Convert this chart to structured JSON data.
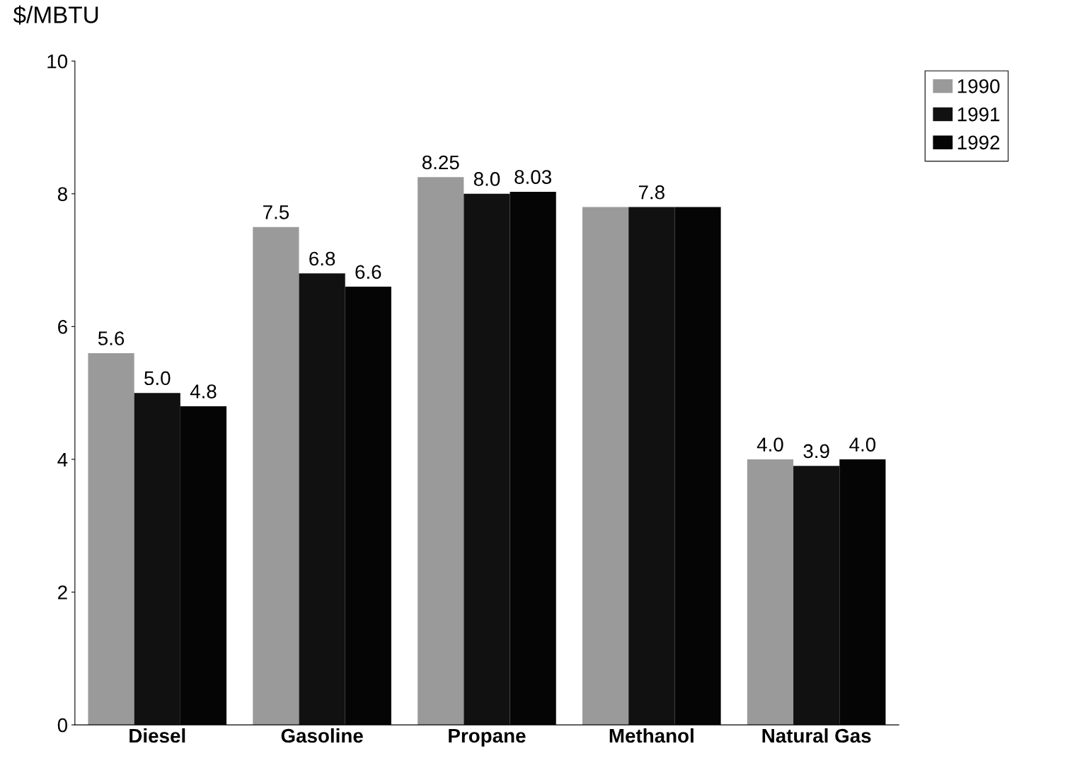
{
  "chart_data": {
    "type": "bar",
    "ylabel": "$/MBTU",
    "categories": [
      "Diesel",
      "Gasoline",
      "Propane",
      "Methanol",
      "Natural Gas"
    ],
    "series": [
      {
        "name": "1990",
        "color": "#9a9a9a",
        "values": [
          5.6,
          7.5,
          8.25,
          7.8,
          4.0
        ],
        "value_labels": [
          "5.6",
          "7.5",
          "8.25",
          null,
          "4.0"
        ]
      },
      {
        "name": "1991",
        "color": "#111111",
        "values": [
          5.0,
          6.8,
          8.0,
          7.8,
          3.9
        ],
        "value_labels": [
          "5.0",
          "6.8",
          "8.0",
          "7.8",
          "3.9"
        ]
      },
      {
        "name": "1992",
        "color": "#050505",
        "values": [
          4.8,
          6.6,
          8.03,
          7.8,
          4.0
        ],
        "value_labels": [
          "4.8",
          "6.6",
          "8.03",
          null,
          "4.0"
        ]
      }
    ],
    "ylim": [
      0,
      10
    ],
    "yticks": [
      0,
      2,
      4,
      6,
      8,
      10
    ],
    "grid": false,
    "legend": "top right"
  }
}
